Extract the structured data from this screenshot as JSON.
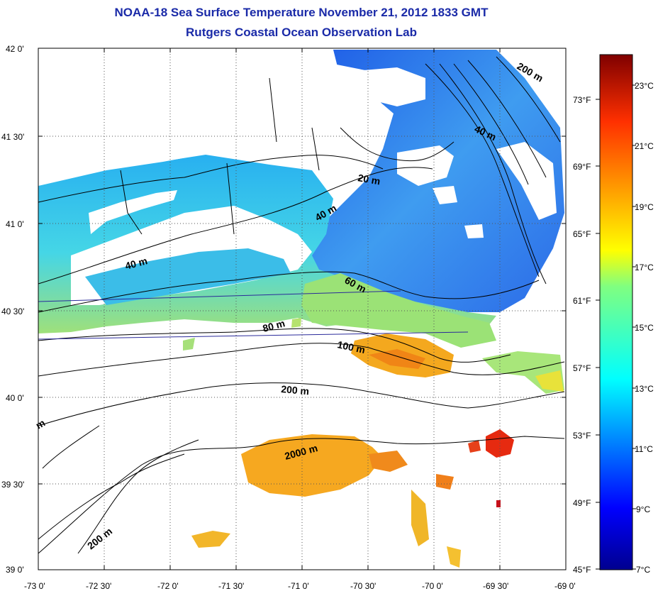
{
  "title": "NOAA-18 Sea Surface Temperature November 21, 2012 1833 GMT",
  "subtitle": "Rutgers Coastal Ocean Observation Lab",
  "map": {
    "lon_ticks": [
      "-73 0'",
      "-72 30'",
      "-72 0'",
      "-71 30'",
      "-71 0'",
      "-70 30'",
      "-70 0'",
      "-69 30'",
      "-69 0'"
    ],
    "lat_ticks": [
      "42 0'",
      "41 30'",
      "41 0'",
      "40 30'",
      "40 0'",
      "39 30'",
      "39 0'"
    ],
    "depth_labels": [
      "20 m",
      "40 m",
      "40 m",
      "40 m",
      "60 m",
      "80 m",
      "100 m",
      "200 m",
      "200 m",
      "200 m",
      "2000 m",
      "m"
    ]
  },
  "colorbar": {
    "celsius": [
      "23°C",
      "21°C",
      "19°C",
      "17°C",
      "15°C",
      "13°C",
      "11°C",
      "9°C",
      "7°C"
    ],
    "fahrenheit": [
      "73°F",
      "69°F",
      "65°F",
      "61°F",
      "57°F",
      "53°F",
      "49°F",
      "45°F"
    ],
    "colors": [
      "#7f0000",
      "#ff0000",
      "#ff8c00",
      "#ffff00",
      "#80ff80",
      "#00ffff",
      "#0080ff",
      "#0000ff",
      "#00008f"
    ]
  }
}
